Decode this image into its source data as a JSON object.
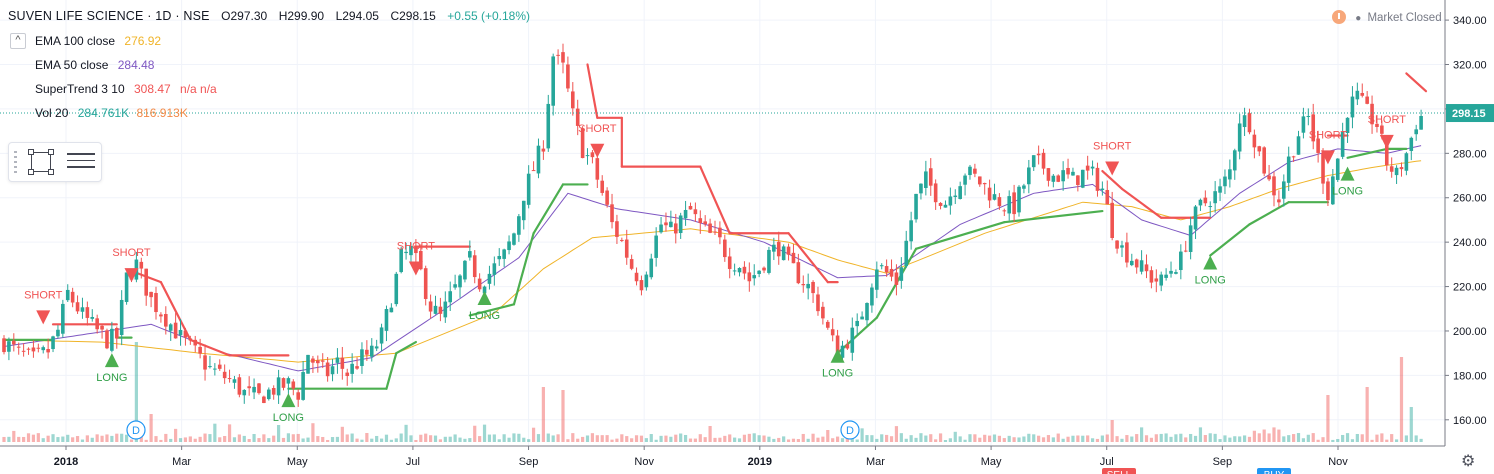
{
  "header": {
    "symbol": "SUVEN LIFE SCIENCE · 1D · NSE",
    "open": "O297.30",
    "high": "H299.90",
    "low": "L294.05",
    "close": "C298.15",
    "change": "+0.55 (+0.18%)"
  },
  "legend": {
    "collapse_glyph": "^",
    "ema100": {
      "name": "EMA 100 close",
      "value": "276.92",
      "color": "#f0b429"
    },
    "ema50": {
      "name": "EMA 50 close",
      "value": "284.48",
      "color": "#7e57c2"
    },
    "supertrend": {
      "name": "SuperTrend 3 10",
      "value": "308.47",
      "extra": "n/a n/a",
      "color": "#f05454"
    },
    "volume": {
      "name": "Vol 20",
      "value": "284.761K",
      "value2": "816.913K",
      "color": "#26a69a",
      "color2": "#f28a47"
    }
  },
  "status": {
    "market": "Market Closed",
    "icon": "clock-icon"
  },
  "toolbar": {
    "icons": [
      "drag-handle-icon",
      "rectangle-tool-icon",
      "drawing-list-icon"
    ]
  },
  "settings_icon": "gear-icon",
  "chart_data": {
    "type": "candlestick",
    "y_axis": {
      "ticks": [
        160,
        180,
        200,
        220,
        240,
        260,
        280,
        300,
        320,
        340
      ],
      "ylim": [
        150,
        345
      ],
      "side": "right"
    },
    "x_axis": {
      "labels": [
        "2018",
        "Mar",
        "May",
        "Jul",
        "Sep",
        "Nov",
        "2019",
        "Mar",
        "May",
        "Jul",
        "Sep",
        "Nov"
      ]
    },
    "last_price": {
      "label": "298.15",
      "value": 298.15
    },
    "shapes": [
      {
        "label": "SHORT",
        "direction": "down",
        "value": 203
      },
      {
        "label": "LONG",
        "direction": "up",
        "value": 190
      },
      {
        "label": "SHORT",
        "direction": "down",
        "value": 222
      },
      {
        "label": "LONG",
        "direction": "up",
        "value": 172
      },
      {
        "label": "SHORT",
        "direction": "down",
        "value": 225
      },
      {
        "label": "LONG",
        "direction": "up",
        "value": 218
      },
      {
        "label": "SHORT",
        "direction": "down",
        "value": 278
      },
      {
        "label": "LONG",
        "direction": "up",
        "value": 192
      },
      {
        "label": "SHORT",
        "direction": "down",
        "value": 270
      },
      {
        "label": "LONG",
        "direction": "up",
        "value": 234
      },
      {
        "label": "SHORT",
        "direction": "down",
        "value": 275
      },
      {
        "label": "LONG",
        "direction": "up",
        "value": 274
      },
      {
        "label": "SHORT",
        "direction": "down",
        "value": 282
      }
    ],
    "dividend_markers": [
      {
        "label": "D"
      },
      {
        "label": "D"
      }
    ],
    "partial_labels": [
      "SELL",
      "BUY"
    ],
    "price_path": [
      [
        0,
        195
      ],
      [
        3,
        190
      ],
      [
        6,
        187
      ],
      [
        9,
        191
      ],
      [
        11,
        200
      ],
      [
        13,
        217
      ],
      [
        16,
        207
      ],
      [
        19,
        200
      ],
      [
        21,
        196
      ],
      [
        23,
        197
      ],
      [
        25,
        224
      ],
      [
        27,
        230
      ],
      [
        30,
        214
      ],
      [
        33,
        206
      ],
      [
        36,
        197
      ],
      [
        39,
        190
      ],
      [
        42,
        183
      ],
      [
        46,
        178
      ],
      [
        49,
        172
      ],
      [
        52,
        170
      ],
      [
        55,
        174
      ],
      [
        58,
        176
      ],
      [
        60,
        172
      ],
      [
        62,
        190
      ],
      [
        64,
        183
      ],
      [
        66,
        181
      ],
      [
        68,
        186
      ],
      [
        70,
        181
      ],
      [
        73,
        188
      ],
      [
        75,
        190
      ],
      [
        77,
        198
      ],
      [
        79,
        215
      ],
      [
        81,
        233
      ],
      [
        83,
        236
      ],
      [
        85,
        226
      ],
      [
        87,
        211
      ],
      [
        89,
        206
      ],
      [
        91,
        215
      ],
      [
        93,
        223
      ],
      [
        95,
        232
      ],
      [
        97,
        222
      ],
      [
        99,
        226
      ],
      [
        102,
        234
      ],
      [
        104,
        244
      ],
      [
        106,
        262
      ],
      [
        108,
        273
      ],
      [
        110,
        285
      ],
      [
        112,
        324
      ],
      [
        114,
        318
      ],
      [
        116,
        297
      ],
      [
        118,
        282
      ],
      [
        120,
        275
      ],
      [
        122,
        262
      ],
      [
        124,
        248
      ],
      [
        126,
        240
      ],
      [
        128,
        229
      ],
      [
        130,
        222
      ],
      [
        132,
        236
      ],
      [
        134,
        248
      ],
      [
        136,
        245
      ],
      [
        138,
        250
      ],
      [
        140,
        254
      ],
      [
        142,
        247
      ],
      [
        144,
        243
      ],
      [
        146,
        240
      ],
      [
        148,
        232
      ],
      [
        150,
        230
      ],
      [
        152,
        223
      ],
      [
        154,
        228
      ],
      [
        156,
        235
      ],
      [
        158,
        238
      ],
      [
        160,
        230
      ],
      [
        162,
        225
      ],
      [
        164,
        220
      ],
      [
        166,
        212
      ],
      [
        168,
        200
      ],
      [
        170,
        190
      ],
      [
        172,
        196
      ],
      [
        174,
        201
      ],
      [
        176,
        216
      ],
      [
        178,
        230
      ],
      [
        180,
        226
      ],
      [
        182,
        222
      ],
      [
        184,
        240
      ],
      [
        186,
        260
      ],
      [
        188,
        268
      ],
      [
        190,
        262
      ],
      [
        192,
        258
      ],
      [
        194,
        265
      ],
      [
        196,
        272
      ],
      [
        198,
        269
      ],
      [
        200,
        265
      ],
      [
        202,
        260
      ],
      [
        204,
        257
      ],
      [
        206,
        256
      ],
      [
        208,
        266
      ],
      [
        210,
        276
      ],
      [
        212,
        274
      ],
      [
        214,
        270
      ],
      [
        216,
        270
      ],
      [
        218,
        268
      ],
      [
        220,
        271
      ],
      [
        222,
        270
      ],
      [
        224,
        264
      ],
      [
        226,
        246
      ],
      [
        228,
        237
      ],
      [
        230,
        233
      ],
      [
        232,
        228
      ],
      [
        234,
        224
      ],
      [
        236,
        222
      ],
      [
        238,
        228
      ],
      [
        240,
        232
      ],
      [
        242,
        248
      ],
      [
        244,
        256
      ],
      [
        246,
        260
      ],
      [
        248,
        263
      ],
      [
        250,
        272
      ],
      [
        252,
        296
      ],
      [
        254,
        294
      ],
      [
        256,
        280
      ],
      [
        258,
        267
      ],
      [
        260,
        260
      ],
      [
        262,
        277
      ],
      [
        264,
        289
      ],
      [
        266,
        296
      ],
      [
        268,
        278
      ],
      [
        270,
        262
      ],
      [
        272,
        278
      ],
      [
        274,
        300
      ],
      [
        276,
        305
      ],
      [
        278,
        298
      ],
      [
        280,
        293
      ],
      [
        282,
        276
      ],
      [
        284,
        270
      ],
      [
        286,
        280
      ],
      [
        288,
        294
      ],
      [
        290,
        299
      ]
    ],
    "ema100_path": [
      [
        0,
        196
      ],
      [
        20,
        195
      ],
      [
        40,
        190
      ],
      [
        60,
        186
      ],
      [
        80,
        190
      ],
      [
        100,
        208
      ],
      [
        110,
        228
      ],
      [
        120,
        242
      ],
      [
        140,
        246
      ],
      [
        160,
        240
      ],
      [
        170,
        232
      ],
      [
        180,
        226
      ],
      [
        200,
        244
      ],
      [
        220,
        258
      ],
      [
        230,
        256
      ],
      [
        240,
        250
      ],
      [
        250,
        256
      ],
      [
        260,
        264
      ],
      [
        270,
        270
      ],
      [
        280,
        274
      ],
      [
        290,
        277
      ]
    ],
    "ema50_path": [
      [
        0,
        193
      ],
      [
        15,
        198
      ],
      [
        30,
        203
      ],
      [
        45,
        190
      ],
      [
        60,
        182
      ],
      [
        75,
        188
      ],
      [
        90,
        210
      ],
      [
        105,
        233
      ],
      [
        115,
        262
      ],
      [
        125,
        255
      ],
      [
        140,
        250
      ],
      [
        155,
        240
      ],
      [
        170,
        224
      ],
      [
        180,
        225
      ],
      [
        195,
        248
      ],
      [
        210,
        262
      ],
      [
        222,
        266
      ],
      [
        232,
        250
      ],
      [
        242,
        243
      ],
      [
        252,
        262
      ],
      [
        262,
        276
      ],
      [
        272,
        282
      ],
      [
        282,
        280
      ],
      [
        290,
        284
      ]
    ],
    "supertrend_path": [
      [
        0,
        196,
        "long"
      ],
      [
        10,
        196,
        "long"
      ],
      [
        10,
        203,
        "short"
      ],
      [
        23,
        203,
        "short"
      ],
      [
        23,
        197,
        "long"
      ],
      [
        26,
        197,
        "long"
      ],
      [
        26,
        227,
        "short"
      ],
      [
        32,
        222,
        "short"
      ],
      [
        38,
        196,
        "short"
      ],
      [
        46,
        189,
        "short"
      ],
      [
        58,
        189,
        "short"
      ],
      [
        58,
        174,
        "long"
      ],
      [
        78,
        174,
        "long"
      ],
      [
        80,
        190,
        "long"
      ],
      [
        84,
        195,
        "long"
      ],
      [
        84,
        238,
        "short"
      ],
      [
        95,
        238,
        "short"
      ],
      [
        95,
        207,
        "long"
      ],
      [
        104,
        212,
        "long"
      ],
      [
        108,
        244,
        "long"
      ],
      [
        114,
        266,
        "long"
      ],
      [
        119,
        266,
        "long"
      ],
      [
        119,
        320,
        "short"
      ],
      [
        121,
        296,
        "short"
      ],
      [
        126,
        296,
        "short"
      ],
      [
        126,
        274,
        "short"
      ],
      [
        142,
        274,
        "short"
      ],
      [
        148,
        244,
        "short"
      ],
      [
        160,
        244,
        "short"
      ],
      [
        168,
        222,
        "short"
      ],
      [
        170,
        222,
        "short"
      ],
      [
        170,
        190,
        "long"
      ],
      [
        178,
        206,
        "long"
      ],
      [
        186,
        237,
        "long"
      ],
      [
        204,
        249,
        "long"
      ],
      [
        224,
        254,
        "long"
      ],
      [
        224,
        272,
        "short"
      ],
      [
        228,
        264,
        "short"
      ],
      [
        236,
        251,
        "short"
      ],
      [
        246,
        251,
        "short"
      ],
      [
        246,
        234,
        "long"
      ],
      [
        254,
        248,
        "long"
      ],
      [
        262,
        258,
        "long"
      ],
      [
        270,
        258,
        "long"
      ],
      [
        270,
        288,
        "short"
      ],
      [
        274,
        288,
        "short"
      ],
      [
        274,
        278,
        "long"
      ],
      [
        282,
        282,
        "long"
      ],
      [
        286,
        282,
        "long"
      ],
      [
        286,
        316,
        "short"
      ],
      [
        290,
        308,
        "short"
      ]
    ],
    "volume_bars": {
      "count": 290,
      "spikes": [
        [
          27,
          1.0
        ],
        [
          30,
          0.28
        ],
        [
          56,
          0.17
        ],
        [
          110,
          0.55
        ],
        [
          114,
          0.52
        ],
        [
          168,
          0.12
        ],
        [
          226,
          0.22
        ],
        [
          270,
          0.47
        ],
        [
          278,
          0.55
        ],
        [
          285,
          0.85
        ],
        [
          287,
          0.35
        ]
      ]
    }
  }
}
